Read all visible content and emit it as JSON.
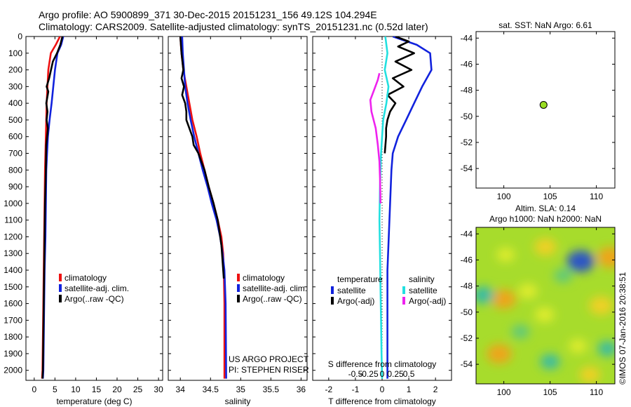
{
  "header": {
    "line1": "Argo profile: AO 5900899_371 30-Dec-2015 20151231_156 49.12S 104.294E",
    "line2": "Climatology: CARS2009. Satellite-adjusted climatology: synTS_20151231.nc (0.52d later)"
  },
  "colors": {
    "climatology": "#ee1111",
    "satellite": "#1122dd",
    "argo": "#000000",
    "salinity_satellite": "#22e0e0",
    "salinity_argo": "#ee22ee",
    "marker": "#99dd22"
  },
  "credits": {
    "project": "US ARGO PROJECT",
    "pi": "PI: STEPHEN RISER",
    "stamp": "©IMOS 07-Jan-2016 20:38:51"
  },
  "chart_data": [
    {
      "type": "line",
      "panel": "temperature",
      "xlabel": "temperature (deg C)",
      "ylabel": "",
      "xlim": [
        -2,
        31
      ],
      "ylim": [
        2060,
        0
      ],
      "y_reversed": true,
      "xticks": [
        0,
        5,
        10,
        15,
        20,
        25,
        30
      ],
      "yticks": [
        0,
        100,
        200,
        300,
        400,
        500,
        600,
        700,
        800,
        900,
        1000,
        1100,
        1200,
        1300,
        1400,
        1500,
        1600,
        1700,
        1800,
        1900,
        2000
      ],
      "legend": [
        "climatology",
        "satellite-adj. clim.",
        "Argo(..raw -QC)"
      ],
      "legend_position": "lower-middle",
      "series": [
        {
          "name": "climatology",
          "color_key": "climatology",
          "x": [
            6.2,
            5.2,
            4.0,
            3.4,
            3.2,
            3.0,
            2.9,
            2.8,
            2.7,
            2.6,
            2.5,
            2.4,
            2.3,
            2.2,
            2.1,
            2.0,
            1.9
          ],
          "y": [
            0,
            50,
            100,
            200,
            300,
            400,
            500,
            600,
            700,
            800,
            1000,
            1200,
            1400,
            1600,
            1800,
            2000,
            2050
          ]
        },
        {
          "name": "satellite-adj. clim.",
          "color_key": "satellite",
          "x": [
            7.0,
            6.5,
            5.6,
            5.0,
            4.6,
            4.2,
            3.7,
            3.3,
            3.1,
            2.9,
            2.8,
            2.7,
            2.5,
            2.4,
            2.3,
            2.2,
            2.1
          ],
          "y": [
            0,
            50,
            100,
            200,
            300,
            400,
            500,
            600,
            700,
            800,
            1000,
            1200,
            1400,
            1600,
            1800,
            2000,
            2050
          ]
        },
        {
          "name": "Argo(..raw -QC)",
          "color_key": "argo",
          "x": [
            6.8,
            6.3,
            5.5,
            4.5,
            3.6,
            3.0,
            3.4,
            2.9,
            3.2,
            3.0,
            3.3,
            2.9,
            2.8,
            2.6,
            2.5,
            2.4,
            2.3,
            2.2,
            2.1,
            2.0
          ],
          "y": [
            0,
            50,
            100,
            150,
            250,
            300,
            330,
            400,
            450,
            500,
            550,
            650,
            800,
            1000,
            1200,
            1400,
            1600,
            1800,
            2000,
            2050
          ]
        }
      ]
    },
    {
      "type": "line",
      "panel": "salinity",
      "xlabel": "salinity",
      "ylabel": "",
      "xlim": [
        33.8,
        36.1
      ],
      "ylim": [
        2060,
        0
      ],
      "y_reversed": true,
      "xticks": [
        34,
        34.5,
        35,
        35.5,
        36
      ],
      "xticklabels": [
        "34",
        "34.5",
        "35",
        "35.5",
        "36"
      ],
      "legend": [
        "climatology",
        "satellite-adj. clim.",
        "Argo(..raw -QC)"
      ],
      "legend_position": "lower-right",
      "series": [
        {
          "name": "climatology",
          "color_key": "climatology",
          "x": [
            34.0,
            34.02,
            34.05,
            34.1,
            34.15,
            34.2,
            34.27,
            34.33,
            34.4,
            34.47,
            34.55,
            34.62,
            34.68,
            34.71,
            34.72,
            34.73,
            34.73
          ],
          "y": [
            0,
            100,
            200,
            300,
            400,
            500,
            600,
            700,
            800,
            900,
            1000,
            1100,
            1200,
            1300,
            1400,
            1600,
            2050
          ]
        },
        {
          "name": "satellite-adj. clim.",
          "color_key": "satellite",
          "x": [
            34.03,
            34.04,
            34.06,
            34.08,
            34.12,
            34.17,
            34.23,
            34.3,
            34.37,
            34.45,
            34.52,
            34.6,
            34.66,
            34.7,
            34.73,
            34.75,
            34.76
          ],
          "y": [
            0,
            100,
            200,
            300,
            400,
            500,
            600,
            700,
            800,
            900,
            1000,
            1100,
            1200,
            1300,
            1400,
            1600,
            2050
          ]
        },
        {
          "name": "Argo(..raw -QC)",
          "color_key": "argo",
          "x": [
            34.0,
            34.02,
            34.05,
            34.02,
            34.06,
            34.03,
            34.08,
            34.1,
            34.1,
            34.15,
            34.2,
            34.22,
            34.3,
            34.35,
            34.4,
            34.47,
            34.55,
            34.62,
            34.68,
            34.72
          ],
          "y": [
            0,
            100,
            200,
            250,
            300,
            350,
            400,
            450,
            500,
            550,
            600,
            650,
            700,
            750,
            800,
            900,
            1000,
            1100,
            1250,
            1450
          ]
        }
      ]
    },
    {
      "type": "line",
      "panel": "difference",
      "xlabel": "T difference from climatology",
      "x2label": "S difference from climatology",
      "xlim": [
        -2.6,
        2.6
      ],
      "ylim": [
        2060,
        0
      ],
      "y_reversed": true,
      "xticks": [
        -2,
        -1,
        0,
        1,
        2
      ],
      "x2ticks": [
        -0.5,
        -0.25,
        0,
        0.25,
        0.5
      ],
      "x2ticklabels": [
        "-0.5",
        "-0.25",
        "0",
        "0.25",
        "0.5"
      ],
      "legend_titles": [
        "temperature",
        "salinity"
      ],
      "legend": [
        "satellite",
        "Argo(-adj)",
        "satellite",
        "Argo(-adj)"
      ],
      "legend_position": "lower-middle",
      "series": [
        {
          "name": "temperature satellite",
          "color_key": "satellite",
          "x": [
            0.4,
            1.3,
            1.8,
            1.85,
            1.5,
            1.2,
            0.9,
            0.6,
            0.4,
            0.35,
            0.3,
            0.25,
            0.2,
            0.2,
            0.2,
            0.2,
            0.2,
            0.2
          ],
          "y": [
            0,
            50,
            100,
            200,
            300,
            400,
            500,
            600,
            700,
            800,
            1000,
            1200,
            1400,
            1600,
            1800,
            1900,
            2000,
            2050
          ]
        },
        {
          "name": "temperature Argo(-adj)",
          "color_key": "argo",
          "x": [
            0.5,
            1.0,
            0.6,
            1.2,
            0.5,
            1.1,
            0.4,
            0.8,
            0.2,
            0.5,
            0.3,
            0.2,
            0.15,
            0.15,
            0.1
          ],
          "y": [
            0,
            30,
            60,
            100,
            150,
            200,
            250,
            300,
            350,
            400,
            450,
            500,
            550,
            600,
            700
          ]
        },
        {
          "name": "salinity satellite",
          "color_key": "salinity_satellite",
          "x": [
            0.06,
            0.1,
            0.05,
            0.12,
            0.08,
            0.02,
            0.0,
            -0.02,
            -0.03,
            -0.04,
            -0.05,
            -0.04,
            -0.03,
            -0.02,
            -0.01,
            0.0
          ],
          "y": [
            0,
            100,
            200,
            300,
            400,
            500,
            600,
            700,
            800,
            900,
            1100,
            1300,
            1500,
            1700,
            1900,
            2050
          ]
        },
        {
          "name": "salinity Argo(-adj)",
          "color_key": "salinity_argo",
          "x": [
            -0.05,
            -0.08,
            -0.15,
            -0.22,
            -0.2,
            -0.12,
            -0.08,
            -0.05,
            -0.04,
            -0.03
          ],
          "y": [
            220,
            260,
            320,
            380,
            450,
            550,
            650,
            750,
            850,
            1000
          ]
        }
      ]
    },
    {
      "type": "scatter",
      "panel": "location",
      "title": "sat. SST: NaN Argo: 6.61",
      "xlim": [
        97,
        112
      ],
      "ylim": [
        -55.5,
        -43.5
      ],
      "xticks": [
        100,
        105,
        110
      ],
      "yticks": [
        -44,
        -46,
        -48,
        -50,
        -52,
        -54
      ],
      "points": [
        {
          "x": 104.294,
          "y": -49.12
        }
      ]
    },
    {
      "type": "heatmap",
      "panel": "altimetry",
      "title": "Altim. SLA: 0.14",
      "title2": "Argo h1000: NaN h2000: NaN",
      "xlim": [
        97,
        112
      ],
      "ylim": [
        -55.5,
        -43.5
      ],
      "xticks": [
        100,
        105,
        110
      ],
      "yticks": [
        -44,
        -46,
        -48,
        -50,
        -52,
        -54
      ],
      "blobs": [
        {
          "x": 104.5,
          "y": -45.0,
          "v": 0.6
        },
        {
          "x": 108.3,
          "y": -46.1,
          "v": -1.0
        },
        {
          "x": 111.5,
          "y": -45.8,
          "v": 0.9
        },
        {
          "x": 100.0,
          "y": -49.0,
          "v": 0.8
        },
        {
          "x": 97.8,
          "y": -48.7,
          "v": -0.6
        },
        {
          "x": 106.4,
          "y": -47.2,
          "v": -0.3
        },
        {
          "x": 110.5,
          "y": -49.5,
          "v": 0.7
        },
        {
          "x": 104.4,
          "y": -50.2,
          "v": 0.4
        },
        {
          "x": 99.5,
          "y": -53.2,
          "v": 0.8
        },
        {
          "x": 108.0,
          "y": -52.6,
          "v": 0.3
        },
        {
          "x": 105.0,
          "y": -53.8,
          "v": -0.4
        },
        {
          "x": 102.6,
          "y": -48.4,
          "v": 0.4
        },
        {
          "x": 109.3,
          "y": -54.8,
          "v": 0.5
        },
        {
          "x": 100.2,
          "y": -45.6,
          "v": 0.3
        },
        {
          "x": 101.8,
          "y": -51.5,
          "v": -0.3
        },
        {
          "x": 111.2,
          "y": -52.8,
          "v": -0.4
        }
      ]
    }
  ]
}
